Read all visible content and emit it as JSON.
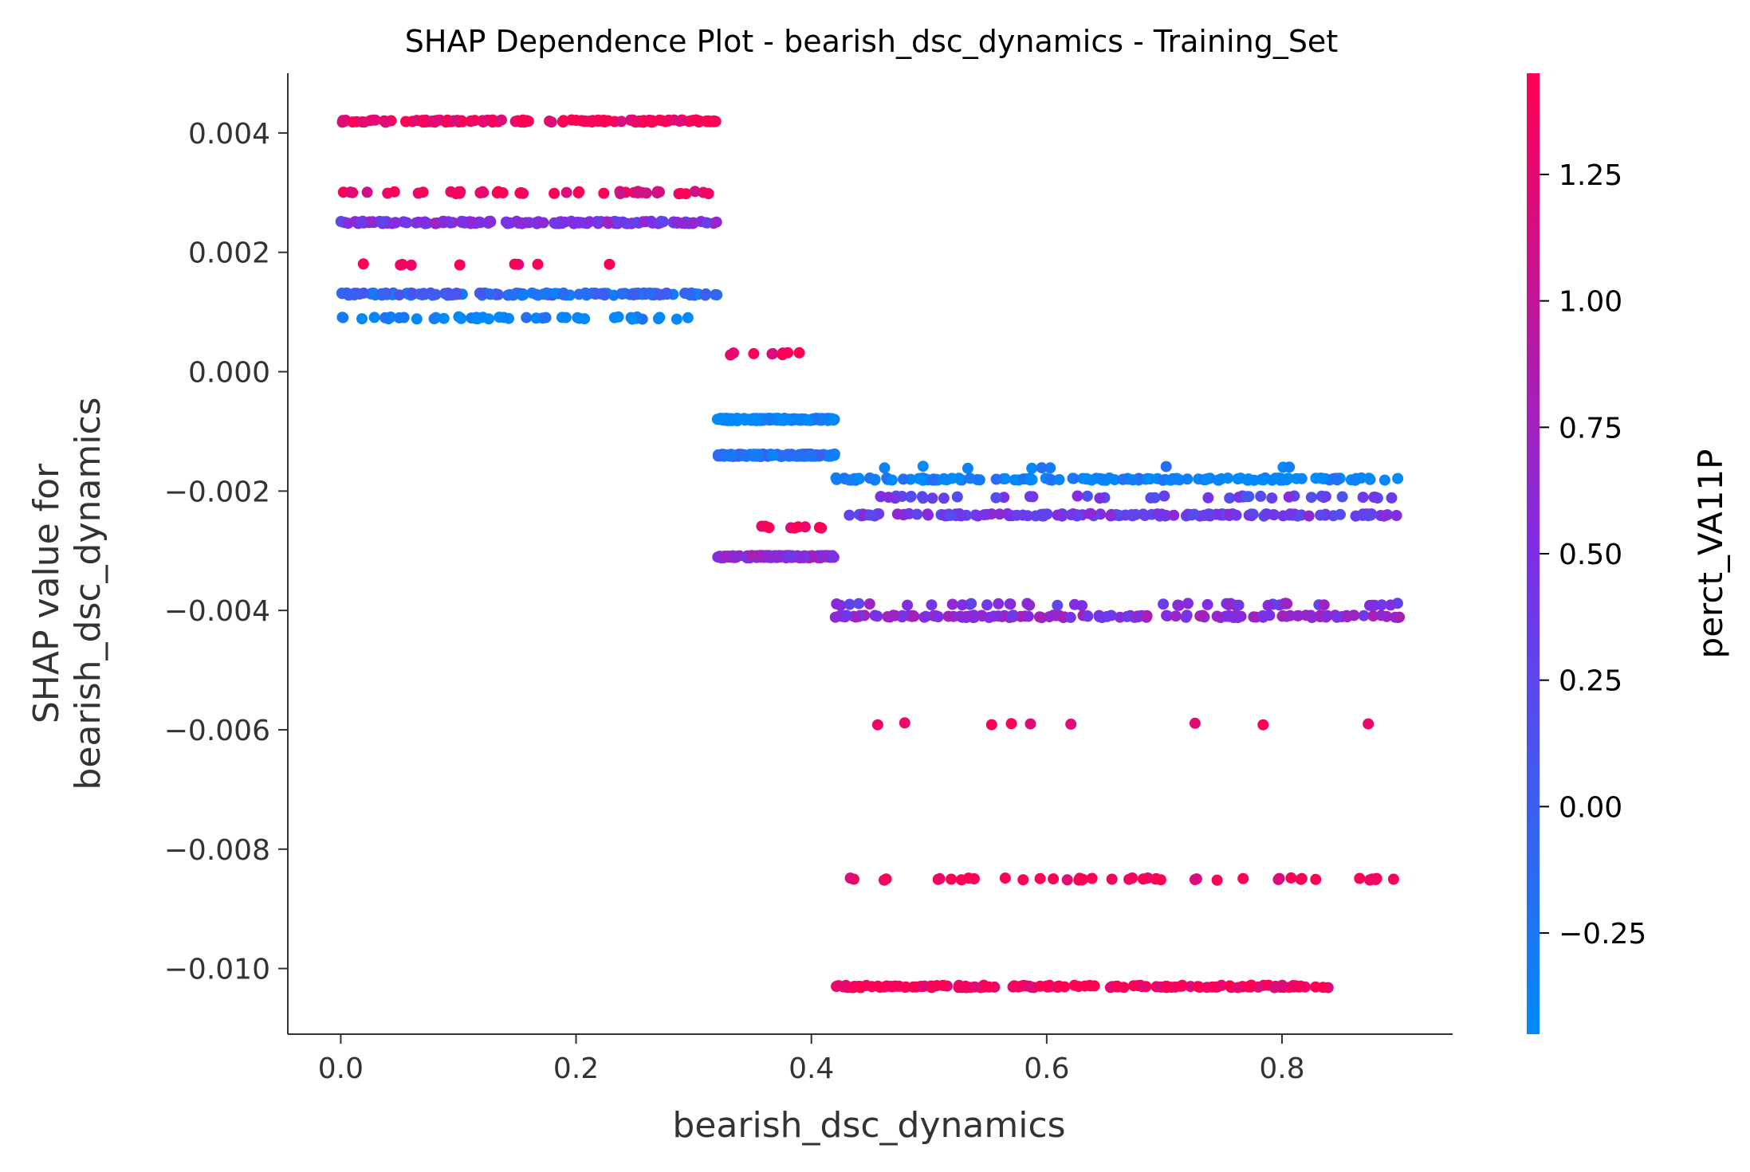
{
  "chart_data": {
    "type": "scatter",
    "title": "SHAP Dependence Plot - bearish_dsc_dynamics - Training_Set",
    "xlabel": "bearish_dsc_dynamics",
    "ylabel_lines": [
      "SHAP value for",
      "bearish_dsc_dynamics"
    ],
    "xlim": [
      -0.045,
      0.945
    ],
    "ylim": [
      -0.0111,
      0.005
    ],
    "xticks": [
      0.0,
      0.2,
      0.4,
      0.6,
      0.8
    ],
    "xtick_labels": [
      "0.0",
      "0.2",
      "0.4",
      "0.6",
      "0.8"
    ],
    "yticks": [
      0.004,
      0.002,
      0.0,
      -0.002,
      -0.004,
      -0.006,
      -0.008,
      -0.01
    ],
    "ytick_labels": [
      "0.004",
      "0.002",
      "0.000",
      "−0.002",
      "−0.004",
      "−0.006",
      "−0.008",
      "−0.010"
    ],
    "colorbar": {
      "label": "perct_VA11P",
      "range": [
        -0.45,
        1.45
      ],
      "ticks": [
        1.25,
        1.0,
        0.75,
        0.5,
        0.25,
        0.0,
        -0.25
      ],
      "tick_labels": [
        "1.25",
        "1.00",
        "0.75",
        "0.50",
        "0.25",
        "0.00",
        "−0.25"
      ],
      "colors": [
        "#008afb",
        "#7e2ee6",
        "#ff0052"
      ]
    },
    "grid": false,
    "clusters": [
      {
        "y": 0.0042,
        "x_range": [
          0.0,
          0.32
        ],
        "color_value": 1.4,
        "density": "dense"
      },
      {
        "y": 0.003,
        "x_range": [
          0.0,
          0.32
        ],
        "color_value": 1.3,
        "density": "medium"
      },
      {
        "y": 0.0025,
        "x_range": [
          0.0,
          0.32
        ],
        "color_value": 0.5,
        "density": "dense"
      },
      {
        "y": 0.0018,
        "x_range": [
          0.0,
          0.25
        ],
        "color_value": 1.4,
        "density": "sparse"
      },
      {
        "y": 0.0013,
        "x_range": [
          0.0,
          0.32
        ],
        "color_value": -0.1,
        "density": "dense"
      },
      {
        "y": 0.0009,
        "x_range": [
          0.0,
          0.31
        ],
        "color_value": -0.4,
        "density": "medium"
      },
      {
        "y": 0.0003,
        "x_range": [
          0.32,
          0.4
        ],
        "color_value": 1.4,
        "density": "sparse"
      },
      {
        "y": -0.0008,
        "x_range": [
          0.32,
          0.42
        ],
        "color_value": -0.4,
        "density": "dense"
      },
      {
        "y": -0.0014,
        "x_range": [
          0.32,
          0.42
        ],
        "color_value": -0.2,
        "density": "dense"
      },
      {
        "y": -0.0026,
        "x_range": [
          0.34,
          0.41
        ],
        "color_value": 1.4,
        "density": "sparse"
      },
      {
        "y": -0.0031,
        "x_range": [
          0.32,
          0.42
        ],
        "color_value": 0.6,
        "density": "dense"
      },
      {
        "y": -0.0016,
        "x_range": [
          0.42,
          0.86
        ],
        "color_value": -0.4,
        "density": "sparse"
      },
      {
        "y": -0.0018,
        "x_range": [
          0.42,
          0.9
        ],
        "color_value": -0.4,
        "density": "dense"
      },
      {
        "y": -0.0021,
        "x_range": [
          0.42,
          0.9
        ],
        "color_value": 0.3,
        "density": "medium"
      },
      {
        "y": -0.0024,
        "x_range": [
          0.42,
          0.9
        ],
        "color_value": 0.4,
        "density": "dense"
      },
      {
        "y": -0.0039,
        "x_range": [
          0.42,
          0.9
        ],
        "color_value": 0.5,
        "density": "medium"
      },
      {
        "y": -0.0041,
        "x_range": [
          0.42,
          0.9
        ],
        "color_value": 0.6,
        "density": "dense"
      },
      {
        "y": -0.0059,
        "x_range": [
          0.44,
          0.9
        ],
        "color_value": 1.4,
        "density": "sparse"
      },
      {
        "y": -0.0085,
        "x_range": [
          0.42,
          0.9
        ],
        "color_value": 1.4,
        "density": "medium"
      },
      {
        "y": -0.0103,
        "x_range": [
          0.42,
          0.84
        ],
        "color_value": 1.4,
        "density": "dense"
      }
    ]
  }
}
